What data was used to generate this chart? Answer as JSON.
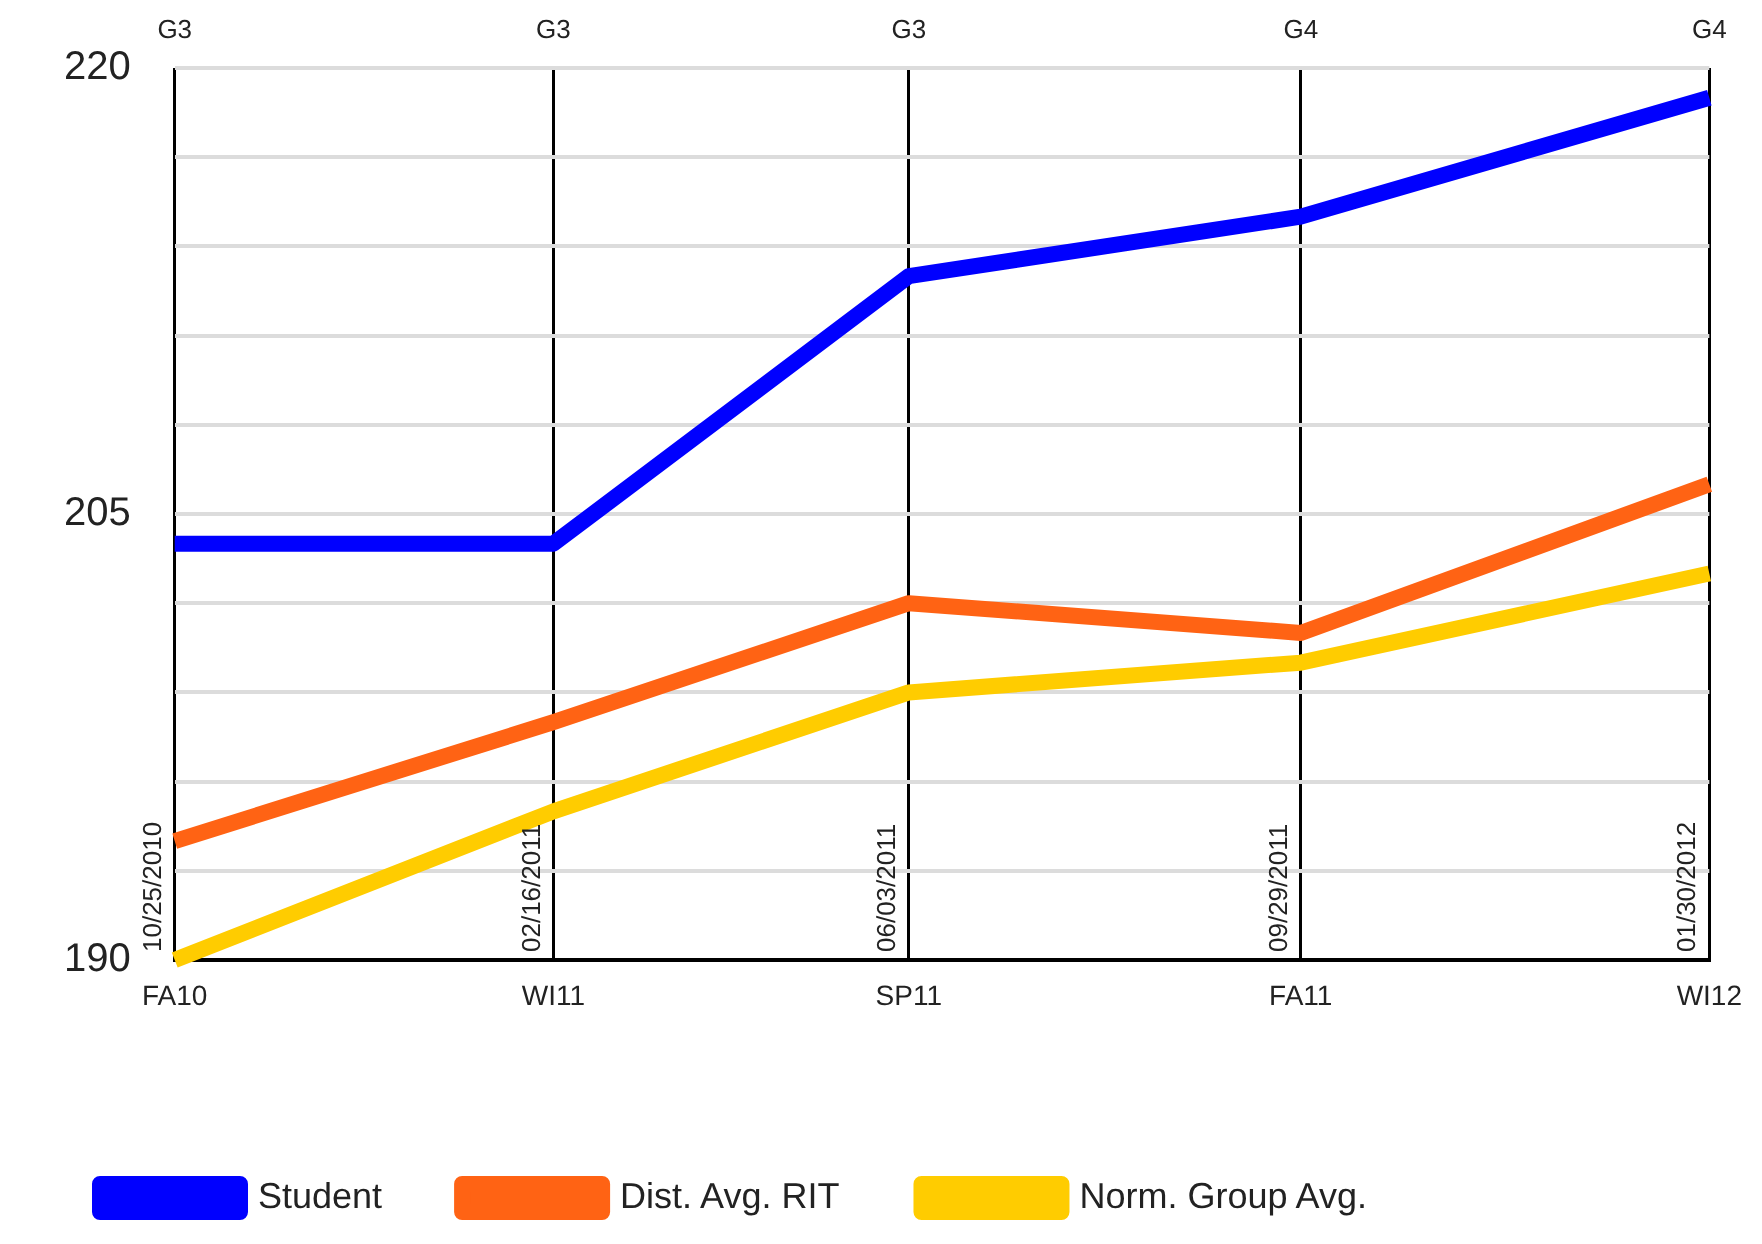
{
  "chart_data": {
    "type": "line",
    "x": [
      "2010-10-25",
      "2011-02-16",
      "2011-06-03",
      "2011-09-29",
      "2012-01-30"
    ],
    "series": [
      {
        "name": "Student",
        "color": "#0000ff",
        "values": [
          204,
          204,
          213,
          215,
          219
        ]
      },
      {
        "name": "Dist. Avg. RIT",
        "color": "#ff6314",
        "values": [
          194,
          198,
          202,
          201,
          206
        ]
      },
      {
        "name": "Norm. Group Avg.",
        "color": "#ffcc00",
        "values": [
          190,
          195,
          199,
          200,
          203
        ]
      }
    ],
    "xlim": [
      "2010-10-25",
      "2012-01-30"
    ],
    "xticks": [
      {
        "value": "2010-10-25",
        "label": "FA10"
      },
      {
        "value": "2011-02-16",
        "label": "WI11"
      },
      {
        "value": "2011-06-03",
        "label": "SP11"
      },
      {
        "value": "2011-09-29",
        "label": "FA11"
      },
      {
        "value": "2012-01-30",
        "label": "WI12"
      }
    ],
    "x2lim": [
      "2010-10-25",
      "2012-01-30"
    ],
    "x2ticks": [
      {
        "value": "2010-10-25",
        "label": "G3"
      },
      {
        "value": "2011-02-16",
        "label": "G3"
      },
      {
        "value": "2011-06-03",
        "label": "G3"
      },
      {
        "value": "2011-09-29",
        "label": "G4"
      },
      {
        "value": "2012-01-30",
        "label": "G4"
      }
    ],
    "ylim": [
      190,
      220
    ],
    "yticks": [
      190,
      {
        "value": 193,
        "label": null
      },
      {
        "value": 196,
        "label": null
      },
      {
        "value": 199,
        "label": null
      },
      {
        "value": 202,
        "label": null
      },
      205,
      {
        "value": 208,
        "label": null
      },
      {
        "value": 211,
        "label": null
      },
      {
        "value": 214,
        "label": null
      },
      {
        "value": 217,
        "label": null
      },
      220
    ],
    "annotations": [
      "10/25/2010",
      "02/16/2011",
      "06/03/2011",
      "09/29/2011",
      "01/30/2012"
    ],
    "grid": true,
    "legend": "bottom",
    "marker": "none"
  }
}
